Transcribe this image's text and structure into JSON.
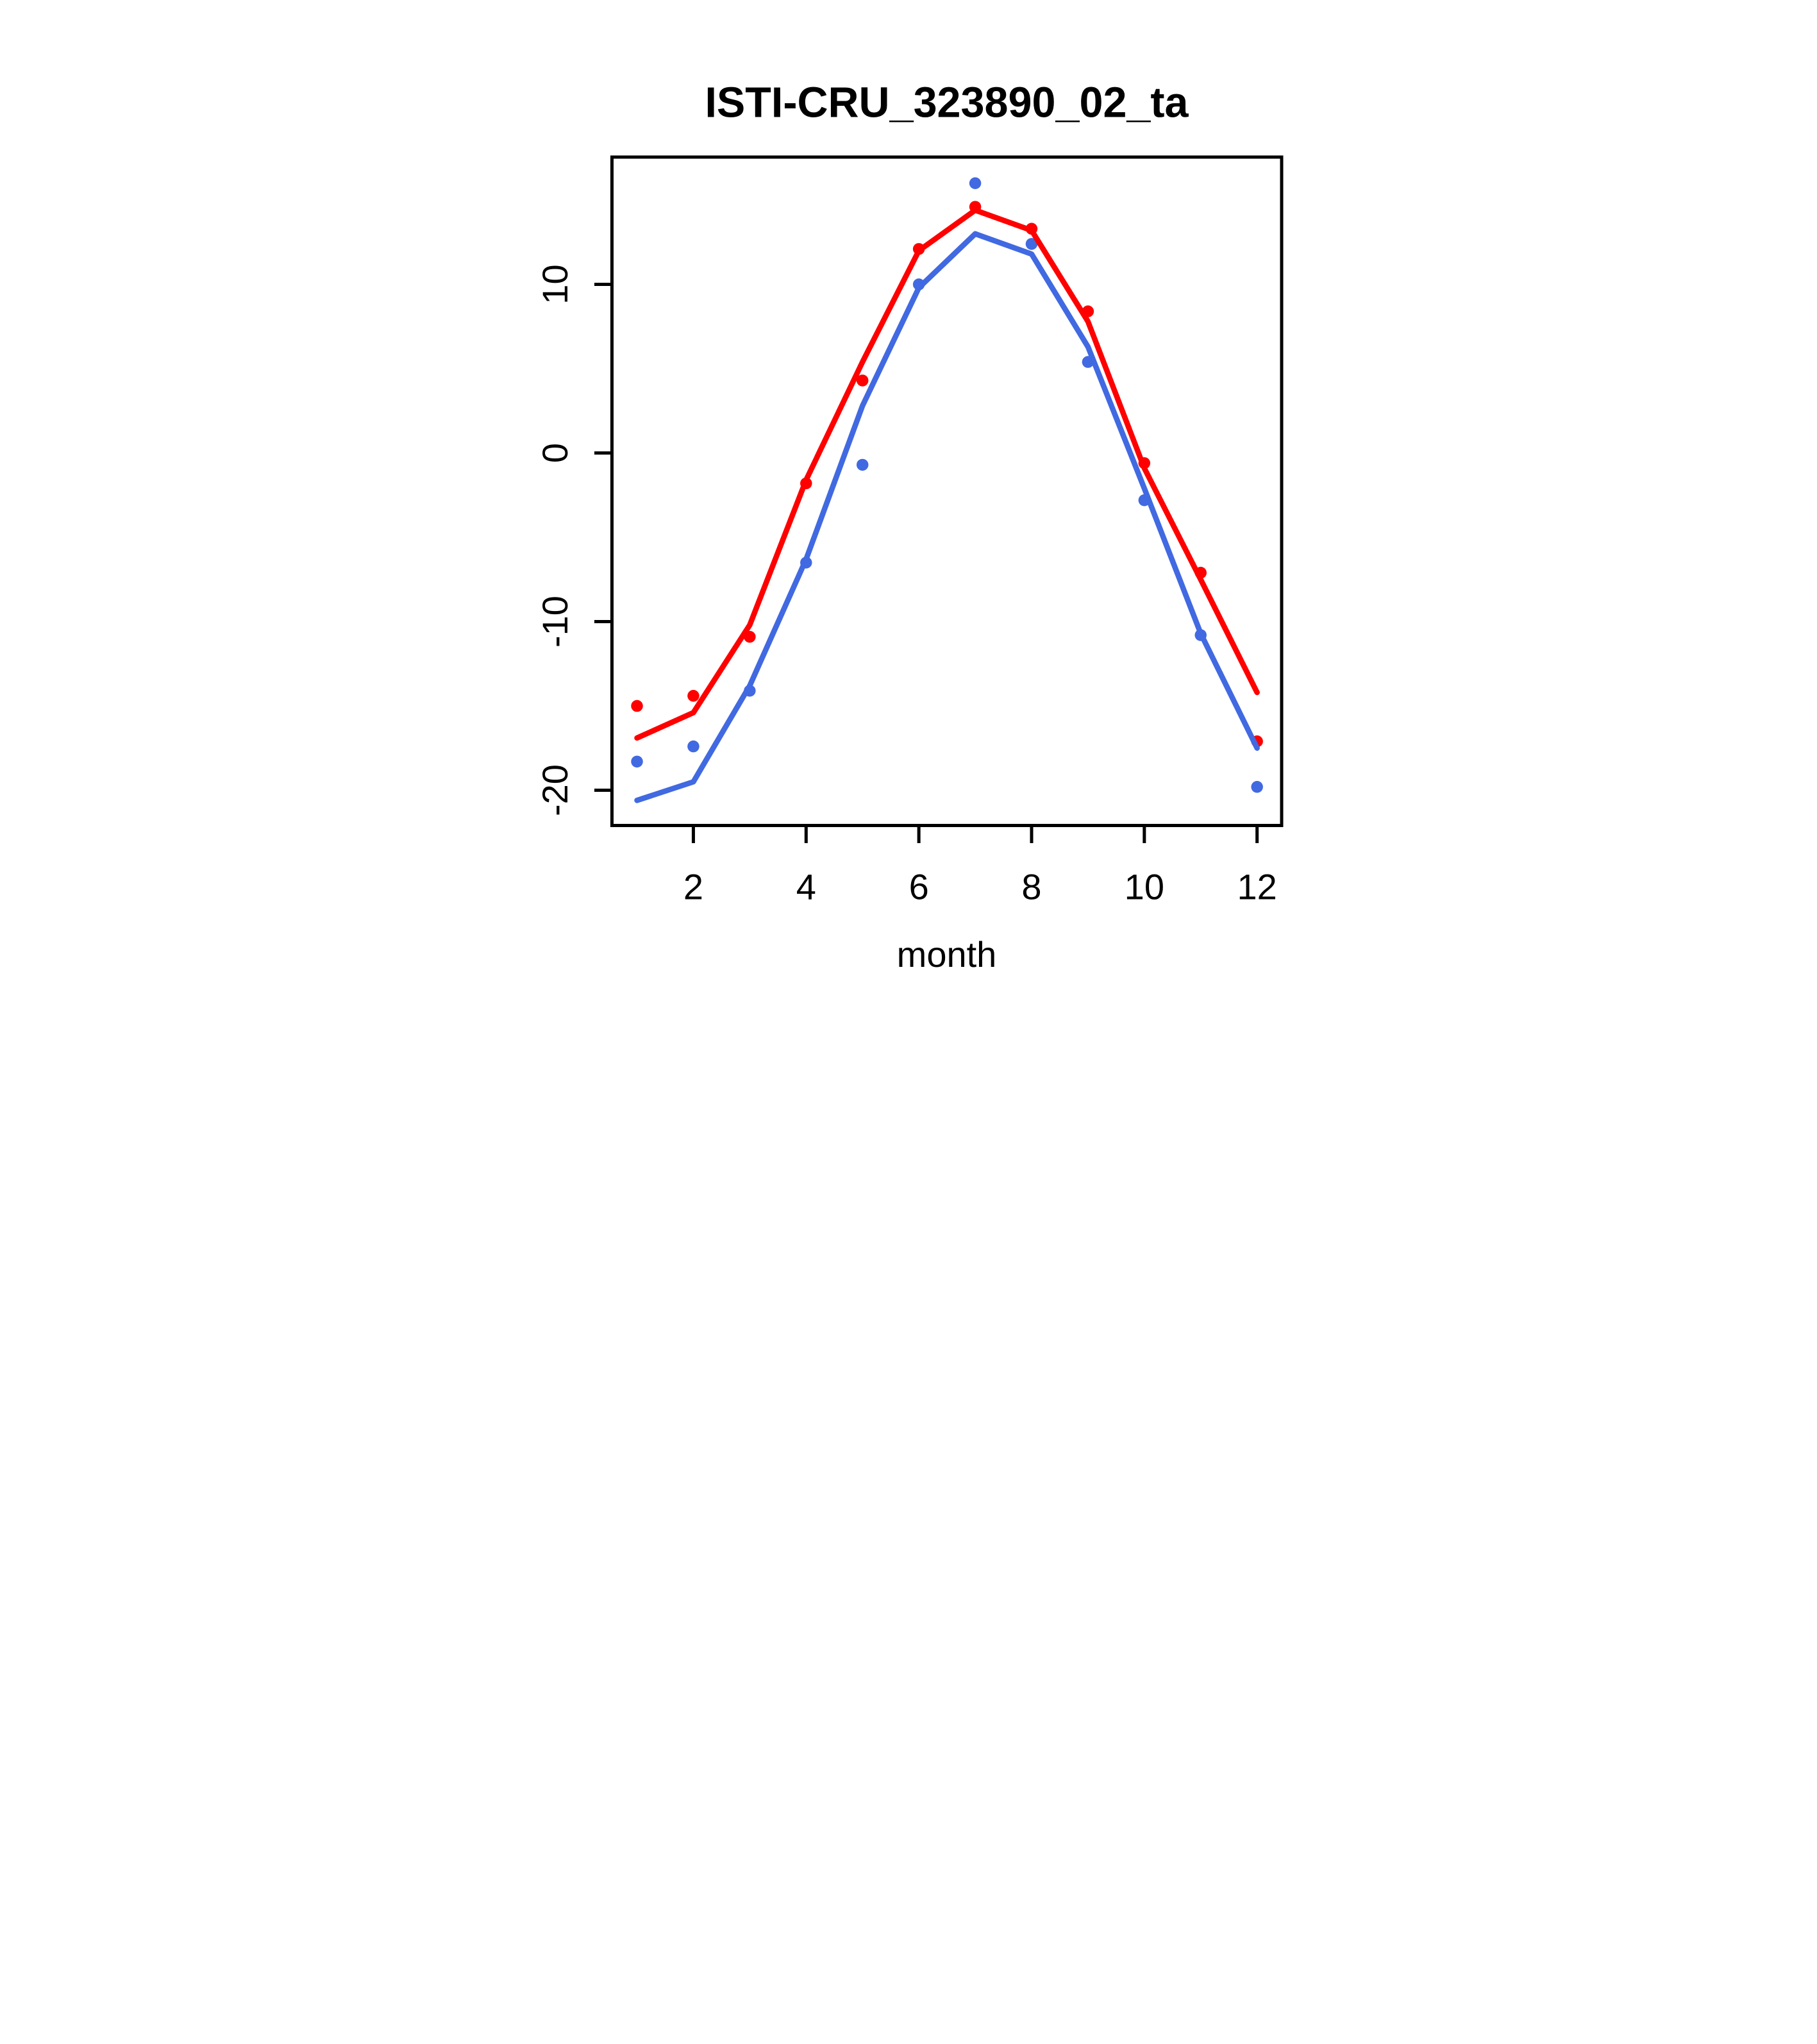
{
  "figure": {
    "title": "ISTI-CRU_323890_02_ta",
    "xlabel": "month"
  },
  "chart_data": {
    "type": "line",
    "title": "ISTI-CRU_323890_02_ta",
    "xlabel": "month",
    "ylabel": "",
    "x": [
      1,
      2,
      3,
      4,
      5,
      6,
      7,
      8,
      9,
      10,
      11,
      12
    ],
    "x_ticks": [
      2,
      4,
      6,
      8,
      10,
      12
    ],
    "y_ticks": [
      10,
      0,
      -10,
      -20
    ],
    "xlim": [
      0.556,
      12.436
    ],
    "ylim": [
      -22.09,
      17.55
    ],
    "grid": false,
    "legend": null,
    "background": "#ffffff",
    "axis_color": "#000000",
    "series": [
      {
        "name": "red-points",
        "kind": "points",
        "color": "#ff0000",
        "values": [
          -15.0,
          -14.4,
          -10.9,
          -1.8,
          4.3,
          12.1,
          14.6,
          13.3,
          8.4,
          -0.6,
          -7.1,
          -17.1
        ]
      },
      {
        "name": "blue-points",
        "kind": "points",
        "color": "#4169e1",
        "values": [
          -18.3,
          -17.4,
          -14.1,
          -6.5,
          -0.7,
          10.0,
          16.0,
          12.4,
          5.4,
          -2.8,
          -10.8,
          -19.8
        ]
      },
      {
        "name": "red-line",
        "kind": "line",
        "color": "#ff0000",
        "values": [
          -16.9,
          -15.4,
          -10.2,
          -1.6,
          5.4,
          12.0,
          14.4,
          13.2,
          7.8,
          -0.9,
          -7.5,
          -14.2
        ]
      },
      {
        "name": "blue-line",
        "kind": "line",
        "color": "#4169e1",
        "values": [
          -20.6,
          -19.5,
          -13.8,
          -6.3,
          2.8,
          9.8,
          13.0,
          11.8,
          6.3,
          -2.1,
          -10.7,
          -17.5
        ]
      }
    ]
  }
}
